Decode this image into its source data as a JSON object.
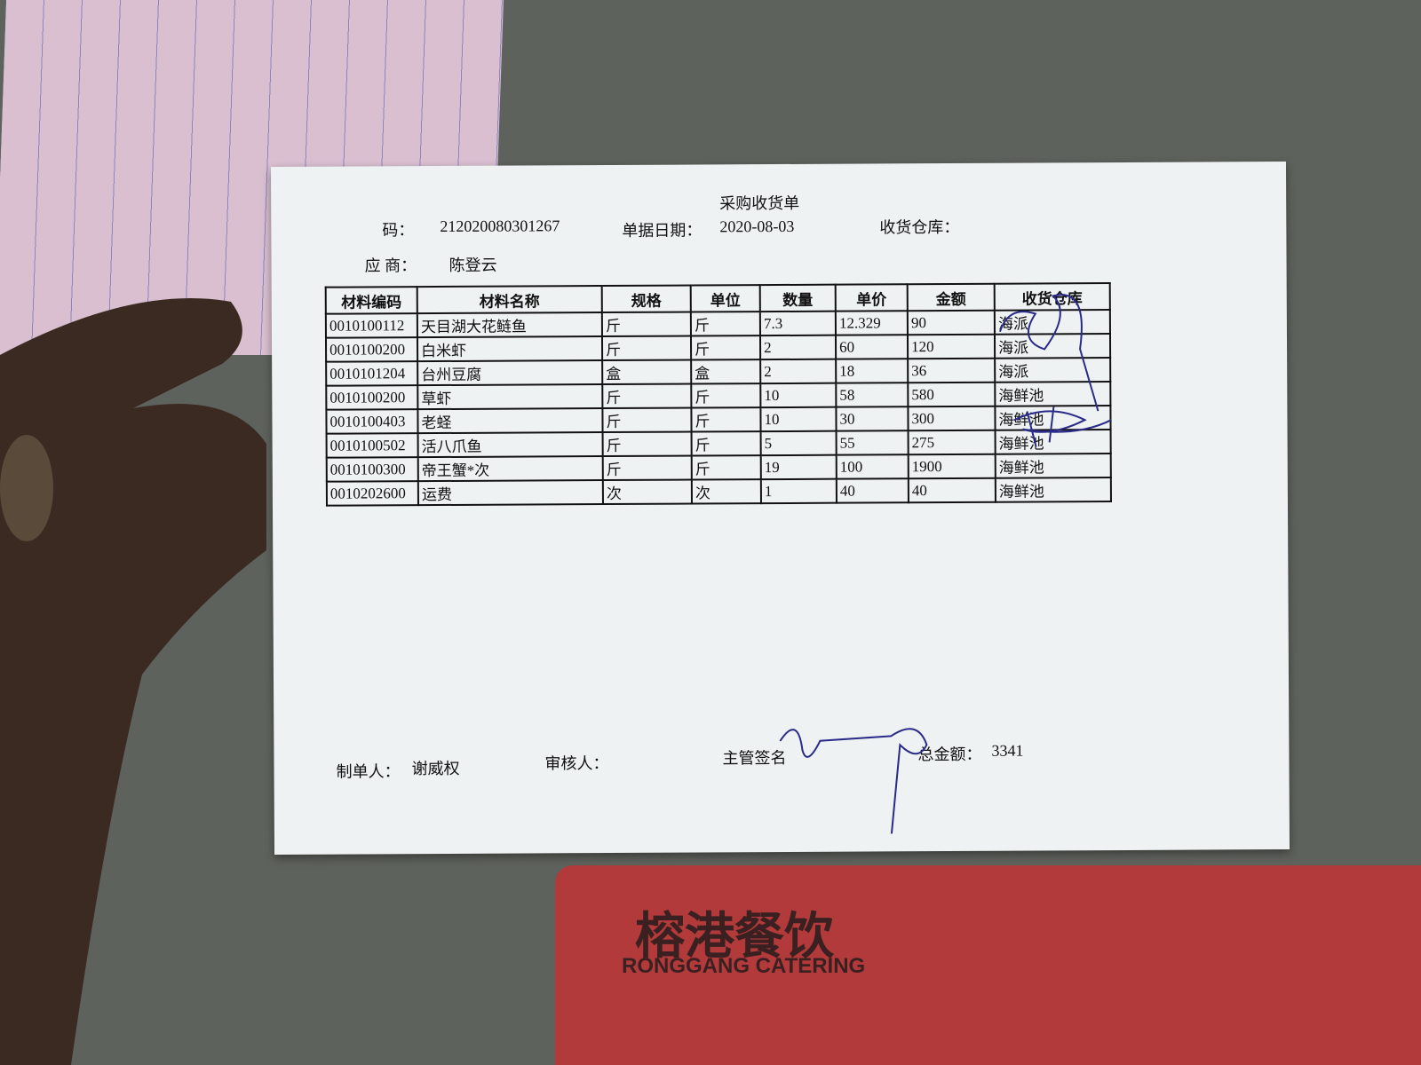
{
  "header": {
    "title": "采购收货单",
    "doc_no_label": "码：",
    "doc_no": "212020080301267",
    "date_label": "单据日期：",
    "date": "2020-08-03",
    "warehouse_label": "收货仓库：",
    "supplier_label": "应 商：",
    "supplier": "陈登云"
  },
  "table": {
    "columns": [
      "材料编码",
      "材料名称",
      "规格",
      "单位",
      "数量",
      "单价",
      "金额",
      "收货仓库"
    ],
    "rows": [
      [
        "0010100112",
        "天目湖大花鲢鱼",
        "斤",
        "斤",
        "7.3",
        "12.329",
        "90",
        "海派"
      ],
      [
        "0010100200",
        "白米虾",
        "斤",
        "斤",
        "2",
        "60",
        "120",
        "海派"
      ],
      [
        "0010101204",
        "台州豆腐",
        "盒",
        "盒",
        "2",
        "18",
        "36",
        "海派"
      ],
      [
        "0010100200",
        "草虾",
        "斤",
        "斤",
        "10",
        "58",
        "580",
        "海鲜池"
      ],
      [
        "0010100403",
        "老蛏",
        "斤",
        "斤",
        "10",
        "30",
        "300",
        "海鲜池"
      ],
      [
        "0010100502",
        "活八爪鱼",
        "斤",
        "斤",
        "5",
        "55",
        "275",
        "海鲜池"
      ],
      [
        "0010100300",
        "帝王蟹*次",
        "斤",
        "斤",
        "19",
        "100",
        "1900",
        "海鲜池"
      ],
      [
        "0010202600",
        "运费",
        "次",
        "次",
        "1",
        "40",
        "40",
        "海鲜池"
      ]
    ]
  },
  "footer": {
    "maker_label": "制单人：",
    "maker": "谢威权",
    "reviewer_label": "审核人：",
    "supervisor_label": "主管签名",
    "total_label": "总金额：",
    "total": "3341"
  },
  "mat": {
    "brand": "榕港餐饮",
    "brand_en": "RONGGANG CATERING"
  }
}
